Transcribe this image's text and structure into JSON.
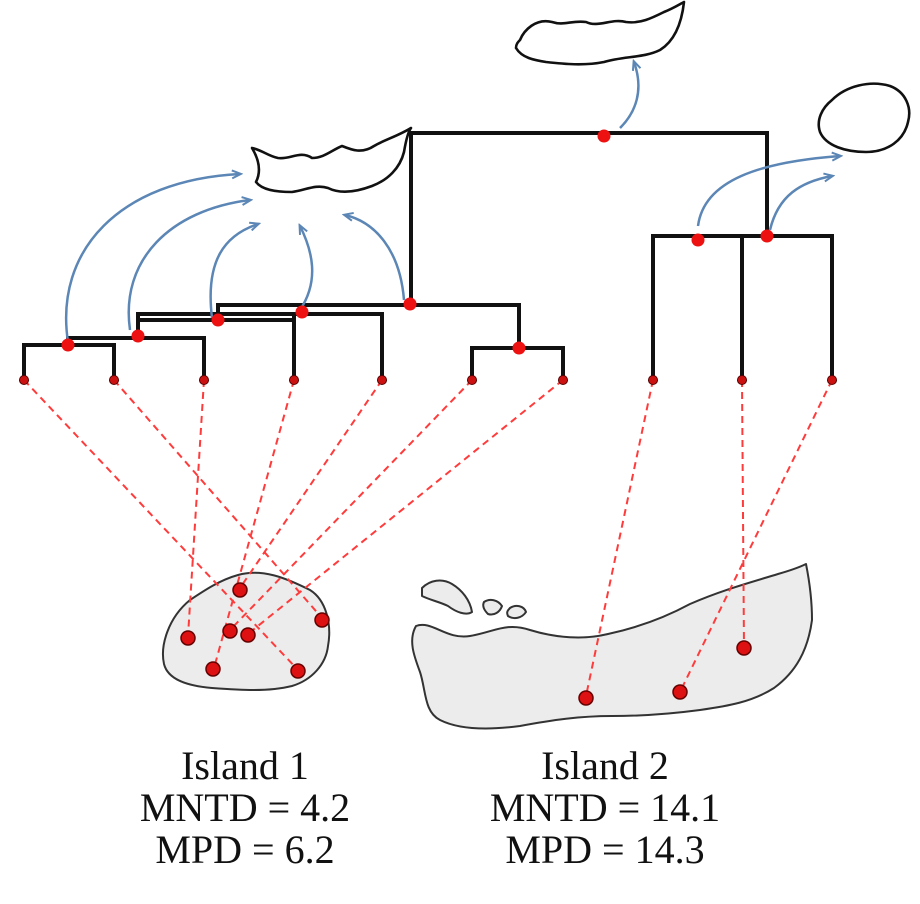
{
  "islands": [
    {
      "name": "Island 1",
      "mntd": "MNTD = 4.2",
      "mpd": "MPD = 6.2"
    },
    {
      "name": "Island 2",
      "mntd": "MNTD = 14.1",
      "mpd": "MPD = 14.3"
    }
  ],
  "colors": {
    "tree": "#111111",
    "colonization_arrows": "#5b86b5",
    "species_links": "#ff3b3b",
    "nodes": "#ee1111",
    "island_fill": "#ececec"
  }
}
